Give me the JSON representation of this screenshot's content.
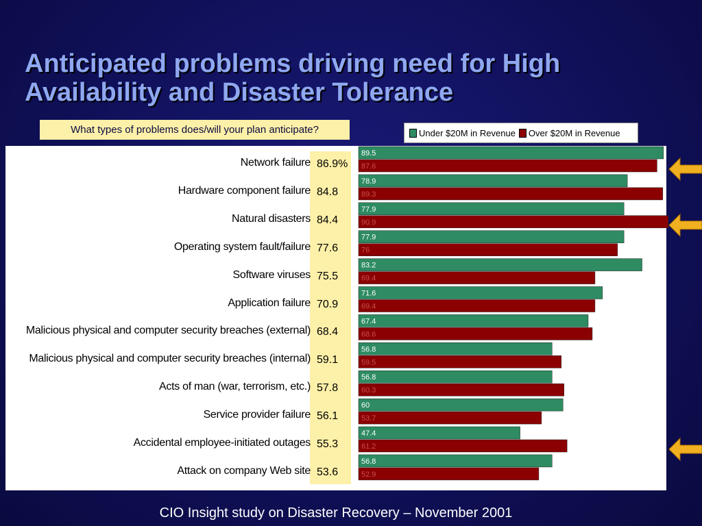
{
  "title_lines": [
    "Anticipated problems driving need for High",
    "Availability and Disaster Tolerance"
  ],
  "question": "What types of problems does/will your plan anticipate?",
  "footer": "CIO Insight study on Disaster Recovery – November 2001",
  "colors": {
    "under": "#2e8b62",
    "over": "#8b0000",
    "highlight": "#fdf0a8",
    "arrow": "#f0b020"
  },
  "chart_data": {
    "type": "bar",
    "orientation": "horizontal",
    "legend": {
      "placement": "top-right"
    },
    "categories": [
      "Network failure",
      "Hardware component failure",
      "Natural disasters",
      "Operating system fault/failure",
      "Software viruses",
      "Application failure",
      "Malicious physical and computer security breaches (external)",
      "Malicious physical and computer security breaches (internal)",
      "Acts of man (war, terrorism, etc.)",
      "Service provider failure",
      "Accidental employee-initiated outages",
      "Attack on company Web site"
    ],
    "totals": [
      "86.9%",
      "84.8",
      "84.4",
      "77.6",
      "75.5",
      "70.9",
      "68.4",
      "59.1",
      "57.8",
      "56.1",
      "55.3",
      "53.6"
    ],
    "series": [
      {
        "name": "Under $20M in Revenue",
        "values": [
          89.5,
          78.9,
          77.9,
          77.9,
          83.2,
          71.6,
          67.4,
          56.8,
          56.8,
          60,
          47.4,
          56.8
        ]
      },
      {
        "name": "Over $20M in Revenue",
        "values": [
          87.6,
          89.3,
          90.9,
          76,
          69.4,
          69.4,
          68.6,
          59.5,
          60.3,
          53.7,
          61.2,
          52.9
        ]
      }
    ],
    "highlighted_categories": [
      "Network failure",
      "Natural disasters",
      "Accidental employee-initiated outages"
    ]
  }
}
